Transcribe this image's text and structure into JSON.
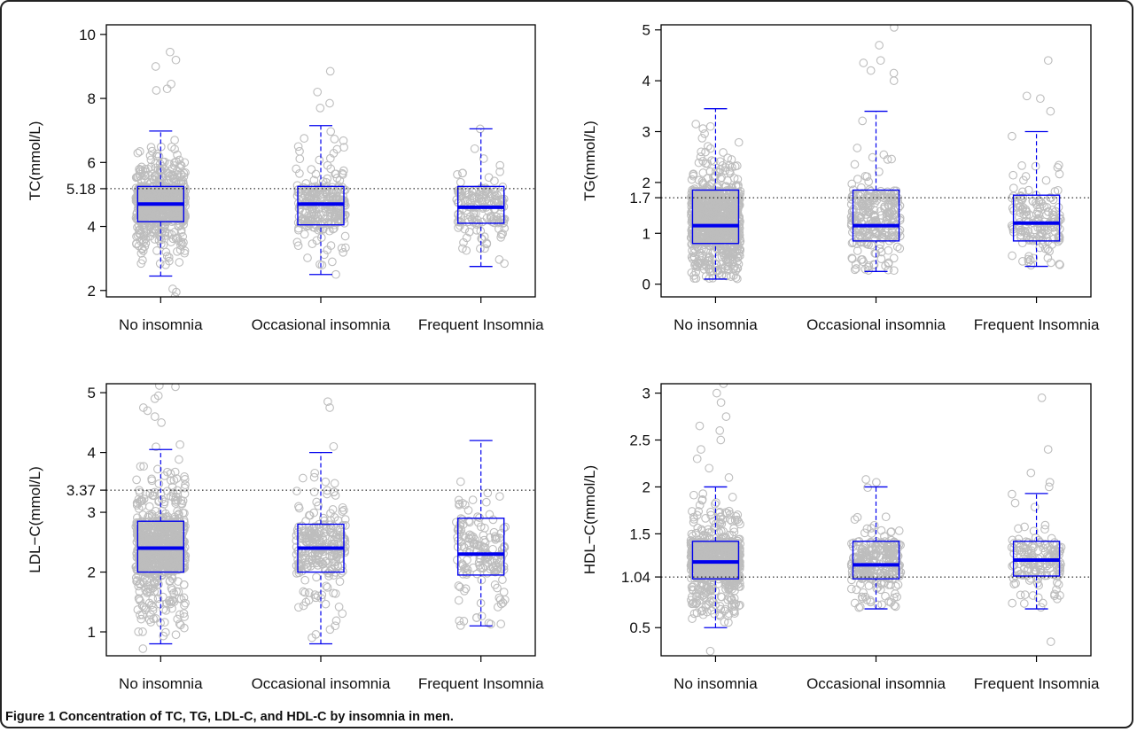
{
  "caption": {
    "label": "Figure 1",
    "text": "Concentration of TC, TG, LDL-C, and HDL-C by insomnia in men."
  },
  "colors": {
    "box": "#0000ee",
    "points": "#bdbdbd",
    "axis": "#000000",
    "refline": "#000000"
  },
  "chart_data": [
    {
      "type": "box",
      "ylabel": "TC(mmol/L)",
      "ylim": [
        1.8,
        10.3
      ],
      "yticks": [
        "2",
        "4",
        "6",
        "8",
        "10"
      ],
      "reference_line": {
        "value": 5.18,
        "label": "5.18"
      },
      "categories": [
        "No insomnia",
        "Occasional insomnia",
        "Frequent Insomnia"
      ],
      "boxes": [
        {
          "category": "No insomnia",
          "whisker_low": 2.45,
          "q1": 4.15,
          "median": 4.7,
          "q3": 5.25,
          "whisker_high": 6.98,
          "point_range": [
            1.9,
            7.6
          ],
          "n_points": 700,
          "outliers": [
            8.3,
            8.25,
            8.45,
            9.0,
            9.2,
            9.45,
            1.95,
            2.05,
            1.8
          ]
        },
        {
          "category": "Occasional insomnia",
          "whisker_low": 2.5,
          "q1": 4.05,
          "median": 4.7,
          "q3": 5.25,
          "whisker_high": 7.15,
          "point_range": [
            2.6,
            7.0
          ],
          "n_points": 260,
          "outliers": [
            7.7,
            7.85,
            8.2,
            8.85,
            2.5
          ]
        },
        {
          "category": "Frequent Insomnia",
          "whisker_low": 2.75,
          "q1": 4.1,
          "median": 4.6,
          "q3": 5.25,
          "whisker_high": 7.05,
          "point_range": [
            2.75,
            6.7
          ],
          "n_points": 160,
          "outliers": [
            7.05
          ]
        }
      ]
    },
    {
      "type": "box",
      "ylabel": "TG(mmol/L)",
      "ylim": [
        -0.25,
        5.1
      ],
      "yticks": [
        "0",
        "1",
        "2",
        "3",
        "4",
        "5"
      ],
      "reference_line": {
        "value": 1.7,
        "label": "1.7"
      },
      "categories": [
        "No insomnia",
        "Occasional insomnia",
        "Frequent Insomnia"
      ],
      "boxes": [
        {
          "category": "No insomnia",
          "whisker_low": 0.1,
          "q1": 0.8,
          "median": 1.15,
          "q3": 1.85,
          "whisker_high": 3.45,
          "point_range": [
            0.1,
            5.1
          ],
          "n_points": 900,
          "outliers": []
        },
        {
          "category": "Occasional insomnia",
          "whisker_low": 0.25,
          "q1": 0.85,
          "median": 1.15,
          "q3": 1.85,
          "whisker_high": 3.4,
          "point_range": [
            0.25,
            3.6
          ],
          "n_points": 260,
          "outliers": [
            4.0,
            4.15,
            4.2,
            4.35,
            4.4,
            4.7,
            5.05
          ]
        },
        {
          "category": "Frequent Insomnia",
          "whisker_low": 0.35,
          "q1": 0.85,
          "median": 1.2,
          "q3": 1.75,
          "whisker_high": 3.0,
          "point_range": [
            0.35,
            3.0
          ],
          "n_points": 160,
          "outliers": [
            3.4,
            3.65,
            3.7,
            4.4
          ]
        }
      ]
    },
    {
      "type": "box",
      "ylabel": "LDL−C(mmol/L)",
      "ylim": [
        0.6,
        5.15
      ],
      "yticks": [
        "1",
        "2",
        "3",
        "4",
        "5"
      ],
      "reference_line": {
        "value": 3.37,
        "label": "3.37"
      },
      "categories": [
        "No insomnia",
        "Occasional insomnia",
        "Frequent Insomnia"
      ],
      "boxes": [
        {
          "category": "No insomnia",
          "whisker_low": 0.8,
          "q1": 2.0,
          "median": 2.4,
          "q3": 2.85,
          "whisker_high": 4.05,
          "point_range": [
            0.6,
            4.3
          ],
          "n_points": 800,
          "outliers": [
            4.5,
            4.6,
            4.7,
            4.75,
            4.9,
            4.95,
            5.1,
            5.12
          ]
        },
        {
          "category": "Occasional insomnia",
          "whisker_low": 0.8,
          "q1": 2.0,
          "median": 2.4,
          "q3": 2.8,
          "whisker_high": 4.0,
          "point_range": [
            0.8,
            3.7
          ],
          "n_points": 260,
          "outliers": [
            4.1,
            4.75,
            4.85
          ]
        },
        {
          "category": "Frequent Insomnia",
          "whisker_low": 1.1,
          "q1": 1.95,
          "median": 2.3,
          "q3": 2.9,
          "whisker_high": 4.2,
          "point_range": [
            1.1,
            3.9
          ],
          "n_points": 160,
          "outliers": []
        }
      ]
    },
    {
      "type": "box",
      "ylabel": "HDL−C(mmol/L)",
      "ylim": [
        0.2,
        3.1
      ],
      "yticks": [
        "0.5",
        "1.04",
        "1.5",
        "2",
        "2.5",
        "3"
      ],
      "reference_line": {
        "value": 1.04,
        "label": "1.04"
      },
      "categories": [
        "No insomnia",
        "Occasional insomnia",
        "Frequent Insomnia"
      ],
      "boxes": [
        {
          "category": "No insomnia",
          "whisker_low": 0.5,
          "q1": 1.02,
          "median": 1.2,
          "q3": 1.42,
          "whisker_high": 2.0,
          "point_range": [
            0.55,
            2.05
          ],
          "n_points": 800,
          "outliers": [
            2.1,
            2.2,
            2.3,
            2.4,
            2.5,
            2.6,
            2.65,
            2.75,
            2.9,
            3.0,
            3.1,
            0.25
          ]
        },
        {
          "category": "Occasional insomnia",
          "whisker_low": 0.7,
          "q1": 1.02,
          "median": 1.17,
          "q3": 1.42,
          "whisker_high": 2.0,
          "point_range": [
            0.7,
            2.0
          ],
          "n_points": 260,
          "outliers": [
            2.05,
            2.08
          ]
        },
        {
          "category": "Frequent Insomnia",
          "whisker_low": 0.7,
          "q1": 1.05,
          "median": 1.22,
          "q3": 1.42,
          "whisker_high": 1.93,
          "point_range": [
            0.7,
            1.93
          ],
          "n_points": 160,
          "outliers": [
            2.0,
            2.05,
            2.15,
            2.4,
            2.95,
            0.35
          ]
        }
      ]
    }
  ]
}
